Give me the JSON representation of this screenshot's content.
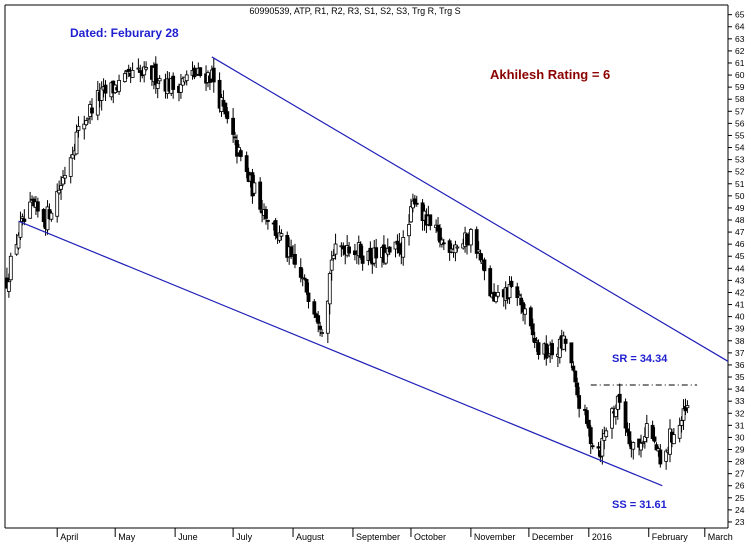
{
  "header": "60990539, ATP, R1, R2, R3, S1, S2, S3, Trg R, Trg S",
  "annotations": {
    "dated": "Dated: Feburary 28",
    "rating": "Akhilesh Rating = 6",
    "sr": "SR = 34.34",
    "ss": "SS = 31.61"
  },
  "colors": {
    "annotation_blue": "#1f1fd0",
    "rating_red": "#8b0000",
    "channel_line": "#2020b8",
    "candles": "#000000"
  },
  "chart_data": {
    "type": "candlestick",
    "title": "",
    "ylim": [
      22.5,
      65.8
    ],
    "y_ticks": [
      23,
      24,
      25,
      26,
      27,
      28,
      29,
      30,
      31,
      32,
      33,
      34,
      35,
      36,
      37,
      38,
      39,
      40,
      41,
      42,
      43,
      44,
      45,
      46,
      47,
      48,
      49,
      50,
      51,
      52,
      53,
      54,
      55,
      56,
      57,
      58,
      59,
      60,
      61,
      62,
      63,
      64,
      65
    ],
    "x_tick_labels": [
      "April",
      "May",
      "June",
      "July",
      "August",
      "September",
      "October",
      "November",
      "December",
      "2016",
      "February",
      "March"
    ],
    "x_month_start_day": [
      0,
      30,
      61,
      91,
      122,
      153,
      183,
      214,
      244,
      275,
      306,
      335
    ],
    "xlim_days": [
      -27,
      347
    ],
    "close_anchors": [
      [
        -26,
        43
      ],
      [
        -20,
        47
      ],
      [
        -13,
        49
      ],
      [
        -6,
        48
      ],
      [
        2,
        51
      ],
      [
        10,
        55
      ],
      [
        20,
        58
      ],
      [
        30,
        59
      ],
      [
        40,
        60
      ],
      [
        50,
        60
      ],
      [
        60,
        59
      ],
      [
        70,
        60
      ],
      [
        80,
        60
      ],
      [
        90,
        55
      ],
      [
        100,
        51
      ],
      [
        110,
        48
      ],
      [
        120,
        45
      ],
      [
        130,
        42
      ],
      [
        138,
        39
      ],
      [
        142,
        45
      ],
      [
        150,
        46
      ],
      [
        160,
        45
      ],
      [
        170,
        45
      ],
      [
        180,
        46
      ],
      [
        185,
        50
      ],
      [
        190,
        48
      ],
      [
        200,
        46
      ],
      [
        210,
        46
      ],
      [
        215,
        47
      ],
      [
        220,
        44
      ],
      [
        226,
        41
      ],
      [
        232,
        42
      ],
      [
        238,
        42
      ],
      [
        244,
        39
      ],
      [
        250,
        37
      ],
      [
        256,
        37
      ],
      [
        264,
        38
      ],
      [
        268,
        34
      ],
      [
        272,
        32
      ],
      [
        276,
        30
      ],
      [
        281,
        29
      ],
      [
        286,
        32
      ],
      [
        291,
        33
      ],
      [
        296,
        30
      ],
      [
        301,
        29
      ],
      [
        305,
        31
      ],
      [
        310,
        29
      ],
      [
        313,
        27
      ],
      [
        317,
        30
      ],
      [
        322,
        31
      ],
      [
        328,
        33
      ]
    ],
    "trendlines": [
      {
        "name": "upper",
        "from": [
          80,
          61.5
        ],
        "to": [
          347,
          36.3
        ]
      },
      {
        "name": "lower",
        "from": [
          -20,
          47.9
        ],
        "to": [
          313,
          26.0
        ]
      }
    ],
    "levels": [
      {
        "label": "SR = 34.34",
        "value": 34.34,
        "from_day": 276,
        "to_day": 331
      }
    ],
    "grid": false,
    "legend": "none"
  }
}
